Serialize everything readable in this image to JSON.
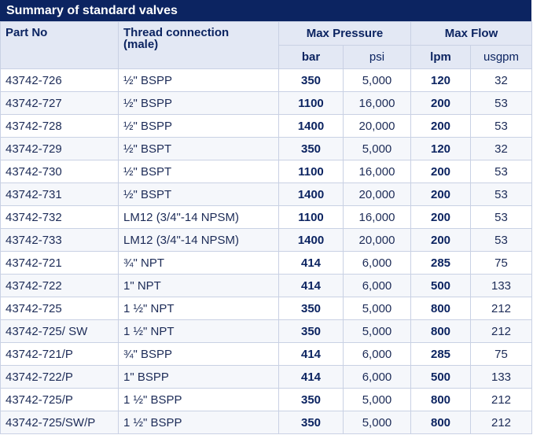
{
  "title": "Summary of standard valves",
  "headers": {
    "part_no": "Part No",
    "thread_line1": "Thread connection",
    "thread_line2": "(male)",
    "max_pressure": "Max Pressure",
    "max_flow": "Max Flow",
    "bar": "bar",
    "psi": "psi",
    "lpm": "lpm",
    "usgpm": "usgpm"
  },
  "rows": [
    {
      "part": "43742-726",
      "thread": "½\" BSPP",
      "bar": "350",
      "psi": "5,000",
      "lpm": "120",
      "usgpm": "32"
    },
    {
      "part": "43742-727",
      "thread": "½\" BSPP",
      "bar": "1100",
      "psi": "16,000",
      "lpm": "200",
      "usgpm": "53"
    },
    {
      "part": "43742-728",
      "thread": "½\" BSPP",
      "bar": "1400",
      "psi": "20,000",
      "lpm": "200",
      "usgpm": "53"
    },
    {
      "part": "43742-729",
      "thread": "½\" BSPT",
      "bar": "350",
      "psi": "5,000",
      "lpm": "120",
      "usgpm": "32"
    },
    {
      "part": "43742-730",
      "thread": "½\" BSPT",
      "bar": "1100",
      "psi": "16,000",
      "lpm": "200",
      "usgpm": "53"
    },
    {
      "part": "43742-731",
      "thread": "½\" BSPT",
      "bar": "1400",
      "psi": "20,000",
      "lpm": "200",
      "usgpm": "53"
    },
    {
      "part": "43742-732",
      "thread": "LM12 (3/4\"-14 NPSM)",
      "bar": "1100",
      "psi": "16,000",
      "lpm": "200",
      "usgpm": "53"
    },
    {
      "part": "43742-733",
      "thread": "LM12 (3/4\"-14 NPSM)",
      "bar": "1400",
      "psi": "20,000",
      "lpm": "200",
      "usgpm": "53"
    },
    {
      "part": "43742-721",
      "thread": "¾\" NPT",
      "bar": "414",
      "psi": "6,000",
      "lpm": "285",
      "usgpm": "75"
    },
    {
      "part": "43742-722",
      "thread": "1\" NPT",
      "bar": "414",
      "psi": "6,000",
      "lpm": "500",
      "usgpm": "133"
    },
    {
      "part": "43742-725",
      "thread": "1 ½\" NPT",
      "bar": "350",
      "psi": "5,000",
      "lpm": "800",
      "usgpm": "212"
    },
    {
      "part": "43742-725/ SW",
      "thread": "1 ½\" NPT",
      "bar": "350",
      "psi": "5,000",
      "lpm": "800",
      "usgpm": "212"
    },
    {
      "part": "43742-721/P",
      "thread": "¾\" BSPP",
      "bar": "414",
      "psi": "6,000",
      "lpm": "285",
      "usgpm": "75"
    },
    {
      "part": "43742-722/P",
      "thread": "1\" BSPP",
      "bar": "414",
      "psi": "6,000",
      "lpm": "500",
      "usgpm": "133"
    },
    {
      "part": "43742-725/P",
      "thread": "1 ½\" BSPP",
      "bar": "350",
      "psi": "5,000",
      "lpm": "800",
      "usgpm": "212"
    },
    {
      "part": "43742-725/SW/P",
      "thread": "1 ½\" BSPP",
      "bar": "350",
      "psi": "5,000",
      "lpm": "800",
      "usgpm": "212"
    }
  ]
}
